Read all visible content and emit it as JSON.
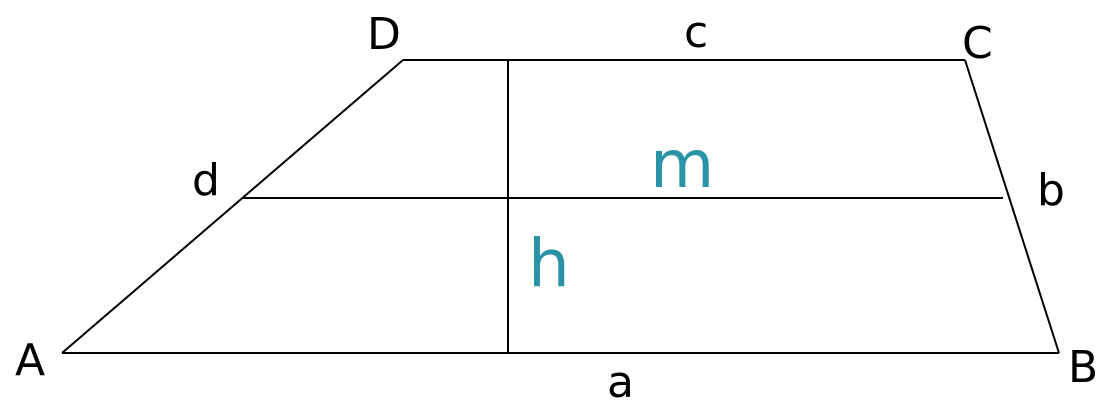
{
  "diagram": {
    "vertices": {
      "A": "A",
      "B": "B",
      "C": "C",
      "D": "D"
    },
    "sides": {
      "a": "a",
      "b": "b",
      "c": "c",
      "d": "d"
    },
    "height_label": "h",
    "midline_label": "m",
    "colors": {
      "lines": "#000000",
      "labels": "#000000",
      "accent": "#2a93a8"
    }
  }
}
